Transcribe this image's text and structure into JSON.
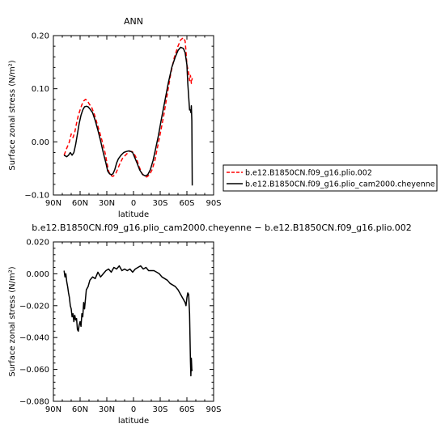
{
  "chart_data": [
    {
      "type": "line",
      "title": "ANN",
      "xlabel": "latitude",
      "ylabel": "Surface zonal stress (N/m²)",
      "xlim": [
        90,
        -90
      ],
      "ylim": [
        -0.1,
        0.2
      ],
      "x_ticks": [
        90,
        60,
        30,
        0,
        -30,
        -60,
        -90
      ],
      "x_tick_labels": [
        "90N",
        "60N",
        "30N",
        "0",
        "30S",
        "60S",
        "90S"
      ],
      "y_ticks": [
        -0.1,
        0.0,
        0.1,
        0.2
      ],
      "y_tick_labels": [
        "−0.10",
        "0.00",
        "0.10",
        "0.20"
      ],
      "legend_position": "right",
      "series": [
        {
          "name": "b.e12.B1850CN.f09_g16.plio.002",
          "color": "#ff0000",
          "dash": "dashed",
          "x": [
            78,
            75,
            72,
            70,
            68,
            66,
            64,
            62,
            60,
            58,
            56,
            54,
            52,
            50,
            47,
            44,
            41,
            38,
            35,
            32,
            30,
            28,
            26,
            23,
            20,
            18,
            15,
            12,
            9,
            6,
            4,
            2,
            0,
            -3,
            -6,
            -9,
            -12,
            -15,
            -18,
            -21,
            -24,
            -27,
            -30,
            -34,
            -38,
            -42,
            -46,
            -50,
            -53,
            -56,
            -58,
            -59,
            -60,
            -62,
            -63,
            -64,
            -65,
            -66
          ],
          "y": [
            -0.025,
            -0.012,
            0.0,
            0.015,
            0.008,
            0.018,
            0.035,
            0.05,
            0.06,
            0.07,
            0.077,
            0.08,
            0.078,
            0.072,
            0.065,
            0.052,
            0.035,
            0.018,
            0.0,
            -0.02,
            -0.038,
            -0.055,
            -0.063,
            -0.065,
            -0.06,
            -0.052,
            -0.04,
            -0.03,
            -0.025,
            -0.02,
            -0.018,
            -0.018,
            -0.02,
            -0.03,
            -0.045,
            -0.058,
            -0.065,
            -0.066,
            -0.062,
            -0.052,
            -0.035,
            -0.01,
            0.015,
            0.05,
            0.09,
            0.13,
            0.16,
            0.18,
            0.192,
            0.196,
            0.19,
            0.17,
            0.145,
            0.13,
            0.115,
            0.125,
            0.11,
            0.12
          ]
        },
        {
          "name": "b.e12.B1850CN.f09_g16.plio_cam2000.cheyenne",
          "color": "#000000",
          "dash": "solid",
          "x": [
            78,
            75,
            73,
            71,
            69,
            67,
            65,
            63,
            61,
            59,
            57,
            55,
            53,
            51,
            49,
            46,
            43,
            40,
            37,
            34,
            31,
            29,
            27,
            25,
            23,
            21,
            19,
            17,
            14,
            11,
            8,
            5,
            3,
            1,
            -1,
            -4,
            -7,
            -10,
            -13,
            -16,
            -19,
            -22,
            -25,
            -28,
            -31,
            -35,
            -39,
            -43,
            -47,
            -50,
            -53,
            -56,
            -58,
            -60,
            -61,
            -62,
            -63,
            -64,
            -64.5,
            -65,
            -65.5,
            -66
          ],
          "y": [
            -0.025,
            -0.028,
            -0.025,
            -0.02,
            -0.025,
            -0.02,
            -0.005,
            0.015,
            0.035,
            0.05,
            0.06,
            0.066,
            0.067,
            0.066,
            0.062,
            0.055,
            0.04,
            0.022,
            0.002,
            -0.02,
            -0.04,
            -0.055,
            -0.06,
            -0.062,
            -0.06,
            -0.052,
            -0.04,
            -0.032,
            -0.025,
            -0.02,
            -0.018,
            -0.017,
            -0.018,
            -0.02,
            -0.028,
            -0.04,
            -0.053,
            -0.061,
            -0.064,
            -0.062,
            -0.052,
            -0.035,
            -0.012,
            0.012,
            0.04,
            0.075,
            0.11,
            0.14,
            0.16,
            0.172,
            0.178,
            0.176,
            0.168,
            0.145,
            0.11,
            0.085,
            0.06,
            0.06,
            0.055,
            0.068,
            0.04,
            -0.082
          ]
        }
      ]
    },
    {
      "type": "line",
      "title": "b.e12.B1850CN.f09_g16.plio_cam2000.cheyenne − b.e12.B1850CN.f09_g16.plio.002",
      "xlabel": "latitude",
      "ylabel": "Surface zonal stress (N/m²)",
      "xlim": [
        90,
        -90
      ],
      "ylim": [
        -0.08,
        0.02
      ],
      "x_ticks": [
        90,
        60,
        30,
        0,
        -30,
        -60,
        -90
      ],
      "x_tick_labels": [
        "90N",
        "60N",
        "30N",
        "0",
        "30S",
        "60S",
        "90S"
      ],
      "y_ticks": [
        -0.08,
        -0.06,
        -0.04,
        -0.02,
        0.0,
        0.02
      ],
      "y_tick_labels": [
        "−0.080",
        "−0.060",
        "−0.040",
        "−0.020",
        "0.000",
        "0.020"
      ],
      "series": [
        {
          "color": "#000000",
          "dash": "solid",
          "x": [
            78,
            77,
            76,
            75,
            74,
            73,
            72,
            71,
            70,
            69,
            68,
            67,
            66,
            65,
            64,
            63,
            62,
            61,
            60,
            59,
            58,
            57,
            56,
            55,
            53,
            51,
            49,
            46,
            43,
            40,
            37,
            34,
            31,
            28,
            25,
            22,
            19,
            16,
            13,
            10,
            7,
            4,
            1,
            -2,
            -5,
            -8,
            -11,
            -14,
            -17,
            -20,
            -23,
            -26,
            -29,
            -32,
            -35,
            -38,
            -41,
            -44,
            -47,
            -50,
            -52,
            -54,
            -56,
            -58,
            -59,
            -60,
            -61,
            -62,
            -63,
            -64,
            -64.5,
            -65,
            -65.5,
            -66
          ],
          "y": [
            0.002,
            -0.002,
            0.0,
            -0.005,
            -0.008,
            -0.012,
            -0.015,
            -0.02,
            -0.022,
            -0.027,
            -0.025,
            -0.03,
            -0.026,
            -0.029,
            -0.028,
            -0.035,
            -0.036,
            -0.032,
            -0.03,
            -0.033,
            -0.025,
            -0.027,
            -0.018,
            -0.022,
            -0.01,
            -0.008,
            -0.004,
            -0.002,
            -0.003,
            0.001,
            -0.002,
            0.0,
            0.002,
            0.003,
            0.001,
            0.004,
            0.003,
            0.005,
            0.002,
            0.003,
            0.002,
            0.003,
            0.001,
            0.003,
            0.004,
            0.005,
            0.003,
            0.004,
            0.002,
            0.002,
            0.002,
            0.001,
            0.0,
            -0.002,
            -0.003,
            -0.004,
            -0.006,
            -0.007,
            -0.008,
            -0.01,
            -0.012,
            -0.014,
            -0.016,
            -0.018,
            -0.02,
            -0.015,
            -0.012,
            -0.013,
            -0.025,
            -0.055,
            -0.064,
            -0.053,
            -0.06,
            -0.061
          ]
        }
      ]
    }
  ]
}
